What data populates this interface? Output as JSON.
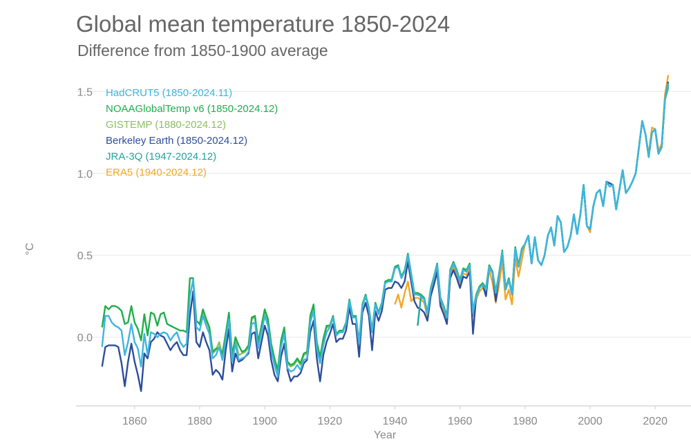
{
  "chart_data": {
    "type": "line",
    "title": "Global mean temperature 1850-2024",
    "subtitle": "Difference from 1850-1900 average",
    "xlabel": "Year",
    "ylabel": "°C",
    "xlim": [
      1842,
      2031
    ],
    "ylim": [
      -0.42,
      1.62
    ],
    "xticks": [
      1860,
      1880,
      1900,
      1920,
      1940,
      1960,
      1980,
      2000,
      2020
    ],
    "yticks": [
      0.0,
      0.5,
      1.0,
      1.5
    ],
    "ytick_labels": [
      "0.0",
      "0.5",
      "1.0",
      "1.5"
    ],
    "grid": "horizontal",
    "legend_position": "top-left",
    "series": [
      {
        "name": "HadCRUT5 (1850-2024.11)",
        "color": "#3db5e0",
        "start_year": 1850,
        "values": [
          -0.06,
          0.13,
          0.13,
          0.09,
          0.07,
          0.06,
          0.04,
          -0.11,
          -0.03,
          0.08,
          -0.03,
          -0.07,
          -0.18,
          0.02,
          -0.11,
          0.03,
          0.02,
          0.0,
          0.02,
          0.03,
          0.02,
          -0.02,
          0.01,
          0.03,
          -0.03,
          -0.06,
          -0.04,
          0.25,
          0.35,
          0.06,
          0.04,
          0.13,
          0.07,
          0.02,
          -0.13,
          -0.11,
          -0.06,
          -0.14,
          -0.02,
          0.11,
          -0.15,
          -0.04,
          -0.14,
          -0.13,
          -0.12,
          -0.09,
          0.08,
          0.09,
          -0.07,
          0.03,
          0.13,
          0.07,
          -0.08,
          -0.17,
          -0.24,
          -0.06,
          0.02,
          -0.19,
          -0.21,
          -0.2,
          -0.17,
          -0.2,
          -0.14,
          -0.13,
          0.09,
          0.16,
          -0.07,
          -0.16,
          -0.05,
          0.03,
          0.06,
          0.12,
          0.01,
          0.03,
          0.03,
          0.08,
          0.22,
          0.12,
          0.12,
          -0.04,
          0.19,
          0.25,
          0.17,
          0.03,
          0.2,
          0.14,
          0.2,
          0.33,
          0.34,
          0.34,
          0.42,
          0.43,
          0.36,
          0.4,
          0.5,
          0.38,
          0.26,
          0.26,
          0.25,
          0.23,
          0.14,
          0.29,
          0.36,
          0.44,
          0.23,
          0.18,
          0.12,
          0.4,
          0.45,
          0.4,
          0.34,
          0.41,
          0.4,
          0.44,
          0.15,
          0.25,
          0.3,
          0.32,
          0.29,
          0.43,
          0.39,
          0.27,
          0.38,
          0.52,
          0.29,
          0.35,
          0.26,
          0.54,
          0.43,
          0.53,
          0.57,
          0.62,
          0.45,
          0.61,
          0.47,
          0.44,
          0.5,
          0.62,
          0.67,
          0.56,
          0.74,
          0.7,
          0.52,
          0.55,
          0.62,
          0.75,
          0.63,
          0.75,
          0.93,
          0.68,
          0.66,
          0.8,
          0.88,
          0.9,
          0.8,
          0.95,
          0.92,
          0.93,
          0.78,
          0.9,
          1.02,
          0.88,
          0.91,
          0.95,
          1.0,
          1.16,
          1.32,
          1.24,
          1.1,
          1.25,
          1.27,
          1.12,
          1.16,
          1.45,
          1.55
        ]
      },
      {
        "name": "NOAAGlobalTemp v6 (1850-2024.12)",
        "color": "#1fae4e",
        "start_year": 1850,
        "values": [
          0.06,
          0.19,
          0.17,
          0.19,
          0.19,
          0.18,
          0.16,
          0.08,
          0.09,
          0.19,
          0.09,
          0.05,
          -0.02,
          0.14,
          0.01,
          0.15,
          0.14,
          0.07,
          0.14,
          0.15,
          0.08,
          0.07,
          0.06,
          0.05,
          0.04,
          0.04,
          0.03,
          0.36,
          0.36,
          0.1,
          0.08,
          0.17,
          0.11,
          0.06,
          -0.09,
          -0.07,
          -0.07,
          -0.1,
          0.02,
          0.15,
          -0.11,
          0.0,
          -0.05,
          -0.09,
          -0.08,
          -0.05,
          0.12,
          0.13,
          -0.03,
          0.07,
          0.17,
          0.11,
          -0.04,
          -0.13,
          -0.2,
          -0.02,
          0.06,
          -0.15,
          -0.17,
          -0.16,
          -0.13,
          -0.16,
          -0.1,
          -0.09,
          0.13,
          0.2,
          -0.03,
          -0.12,
          -0.01,
          0.07,
          0.07,
          0.13,
          0.02,
          0.04,
          0.04,
          0.09,
          0.23,
          0.13,
          0.13,
          -0.03,
          0.2,
          0.26,
          0.18,
          0.04,
          0.21,
          0.15,
          0.21,
          0.34,
          0.35,
          0.35,
          0.43,
          0.44,
          0.37,
          0.41,
          0.51,
          0.39,
          0.27,
          0.27,
          0.26,
          0.24,
          0.15,
          0.3,
          0.37,
          0.45,
          0.24,
          0.19,
          0.13,
          0.41,
          0.46,
          0.41,
          0.35,
          0.42,
          0.41,
          0.45,
          0.16,
          0.26,
          0.31,
          0.33,
          0.3,
          0.44,
          0.4,
          0.28,
          0.39,
          0.53,
          0.3,
          0.36,
          0.27,
          0.55,
          0.44,
          0.54,
          0.57,
          0.62,
          0.45,
          0.61,
          0.47,
          0.44,
          0.5,
          0.62,
          0.67,
          0.56,
          0.74,
          0.7,
          0.52,
          0.55,
          0.62,
          0.75,
          0.63,
          0.75,
          0.93,
          0.68,
          0.66,
          0.8,
          0.88,
          0.9,
          0.8,
          0.95,
          0.92,
          0.93,
          0.78,
          0.9,
          1.02,
          0.88,
          0.91,
          0.95,
          1.0,
          1.16,
          1.32,
          1.24,
          1.1,
          1.25,
          1.27,
          1.12,
          1.16,
          1.45,
          1.53
        ]
      },
      {
        "name": "GISTEMP (1880-2024.12)",
        "color": "#8cbf5f",
        "start_year": 1880,
        "values": [
          0.07,
          0.16,
          0.1,
          0.05,
          -0.1,
          -0.08,
          -0.03,
          -0.11,
          0.01,
          0.14,
          -0.12,
          -0.01,
          -0.11,
          -0.1,
          -0.09,
          -0.06,
          0.11,
          0.12,
          -0.04,
          0.06,
          0.16,
          0.1,
          -0.05,
          -0.14,
          -0.21,
          -0.03,
          0.05,
          -0.16,
          -0.18,
          -0.17,
          -0.14,
          -0.17,
          -0.11,
          -0.1,
          0.12,
          0.19,
          -0.04,
          -0.13,
          -0.02,
          0.06,
          0.06,
          0.12,
          0.01,
          0.03,
          0.03,
          0.08,
          0.22,
          0.12,
          0.12,
          -0.04,
          0.19,
          0.25,
          0.17,
          0.03,
          0.2,
          0.14,
          0.2,
          0.33,
          0.34,
          0.34,
          0.42,
          0.43,
          0.36,
          0.4,
          0.5,
          0.38,
          0.26,
          0.26,
          0.25,
          0.23,
          0.14,
          0.29,
          0.36,
          0.44,
          0.23,
          0.18,
          0.12,
          0.4,
          0.45,
          0.4,
          0.34,
          0.41,
          0.4,
          0.44,
          0.15,
          0.25,
          0.3,
          0.32,
          0.29,
          0.43,
          0.39,
          0.27,
          0.38,
          0.52,
          0.29,
          0.35,
          0.26,
          0.54,
          0.43,
          0.53,
          0.57,
          0.62,
          0.45,
          0.61,
          0.47,
          0.44,
          0.5,
          0.62,
          0.67,
          0.56,
          0.74,
          0.7,
          0.52,
          0.55,
          0.62,
          0.75,
          0.63,
          0.75,
          0.93,
          0.68,
          0.66,
          0.8,
          0.88,
          0.9,
          0.8,
          0.95,
          0.92,
          0.93,
          0.78,
          0.9,
          1.02,
          0.88,
          0.91,
          0.95,
          1.0,
          1.16,
          1.32,
          1.24,
          1.1,
          1.25,
          1.27,
          1.12,
          1.16,
          1.45,
          1.52
        ]
      },
      {
        "name": "Berkeley Earth (1850-2024.12)",
        "color": "#2c4d9c",
        "start_year": 1850,
        "values": [
          -0.18,
          -0.06,
          -0.05,
          -0.05,
          -0.05,
          -0.06,
          -0.16,
          -0.3,
          -0.15,
          -0.04,
          -0.15,
          -0.23,
          -0.33,
          -0.1,
          -0.13,
          -0.03,
          -0.01,
          0.03,
          0.01,
          0.0,
          -0.04,
          -0.08,
          -0.05,
          -0.03,
          -0.08,
          -0.11,
          -0.11,
          0.13,
          0.28,
          -0.03,
          -0.06,
          0.03,
          -0.03,
          -0.08,
          -0.23,
          -0.2,
          -0.22,
          -0.26,
          -0.08,
          0.05,
          -0.21,
          -0.1,
          -0.15,
          -0.14,
          -0.12,
          -0.1,
          0.02,
          0.03,
          -0.13,
          -0.03,
          0.07,
          0.01,
          -0.14,
          -0.23,
          -0.27,
          -0.12,
          -0.04,
          -0.2,
          -0.27,
          -0.24,
          -0.24,
          -0.22,
          -0.16,
          -0.14,
          0.03,
          0.1,
          -0.13,
          -0.27,
          -0.11,
          -0.03,
          0.02,
          0.08,
          -0.03,
          -0.01,
          -0.01,
          0.04,
          0.18,
          0.08,
          0.08,
          -0.12,
          0.15,
          0.21,
          0.13,
          -0.08,
          0.16,
          0.1,
          0.16,
          0.29,
          0.3,
          0.3,
          0.34,
          0.33,
          0.3,
          0.34,
          0.46,
          0.34,
          0.22,
          0.18,
          0.17,
          0.15,
          0.1,
          0.25,
          0.32,
          0.4,
          0.19,
          0.14,
          0.08,
          0.36,
          0.41,
          0.36,
          0.3,
          0.37,
          0.36,
          0.4,
          0.02,
          0.25,
          0.3,
          0.32,
          0.25,
          0.43,
          0.39,
          0.22,
          0.38,
          0.52,
          0.29,
          0.35,
          0.26,
          0.54,
          0.43,
          0.53,
          0.57,
          0.62,
          0.45,
          0.61,
          0.47,
          0.44,
          0.5,
          0.62,
          0.67,
          0.56,
          0.74,
          0.7,
          0.52,
          0.55,
          0.62,
          0.75,
          0.63,
          0.75,
          0.93,
          0.68,
          0.66,
          0.8,
          0.88,
          0.9,
          0.8,
          0.95,
          0.94,
          0.93,
          0.78,
          0.9,
          1.02,
          0.88,
          0.91,
          0.95,
          1.0,
          1.16,
          1.32,
          1.24,
          1.1,
          1.25,
          1.27,
          1.12,
          1.16,
          1.45,
          1.56
        ]
      },
      {
        "name": "JRA-3Q (1947-2024.12)",
        "color": "#22a39f",
        "start_year": 1947,
        "values": [
          0.07,
          0.25,
          0.23,
          0.14,
          0.29,
          0.36,
          0.44,
          0.23,
          0.18,
          0.12,
          0.4,
          0.45,
          0.4,
          0.34,
          0.41,
          0.4,
          0.44,
          0.15,
          0.25,
          0.3,
          0.32,
          0.29,
          0.43,
          0.39,
          0.27,
          0.38,
          0.52,
          0.29,
          0.35,
          0.26,
          0.54,
          0.43,
          0.53,
          0.57,
          0.62,
          0.45,
          0.61,
          0.47,
          0.44,
          0.5,
          0.62,
          0.67,
          0.56,
          0.74,
          0.7,
          0.52,
          0.55,
          0.62,
          0.75,
          0.63,
          0.75,
          0.93,
          0.68,
          0.66,
          0.8,
          0.88,
          0.9,
          0.8,
          0.95,
          0.92,
          0.93,
          0.78,
          0.9,
          1.02,
          0.88,
          0.91,
          0.95,
          1.0,
          1.16,
          1.32,
          1.24,
          1.1,
          1.25,
          1.27,
          1.12,
          1.16,
          1.45,
          1.54
        ]
      },
      {
        "name": "ERA5 (1940-2024.12)",
        "color": "#f5a623",
        "start_year": 1940,
        "values": [
          0.2,
          0.26,
          0.18,
          0.27,
          0.34,
          0.22,
          0.24,
          0.24,
          0.23,
          0.21,
          0.12,
          0.27,
          0.34,
          0.42,
          0.21,
          0.16,
          0.1,
          0.38,
          0.43,
          0.38,
          0.32,
          0.39,
          0.38,
          0.42,
          0.13,
          0.23,
          0.28,
          0.3,
          0.27,
          0.41,
          0.33,
          0.21,
          0.32,
          0.46,
          0.23,
          0.29,
          0.2,
          0.48,
          0.37,
          0.47,
          0.57,
          0.62,
          0.45,
          0.61,
          0.47,
          0.44,
          0.5,
          0.62,
          0.67,
          0.56,
          0.74,
          0.7,
          0.52,
          0.55,
          0.62,
          0.75,
          0.63,
          0.75,
          0.93,
          0.68,
          0.64,
          0.8,
          0.88,
          0.9,
          0.8,
          0.95,
          0.92,
          0.93,
          0.78,
          0.9,
          1.02,
          0.88,
          0.91,
          0.95,
          1.0,
          1.16,
          1.32,
          1.24,
          1.12,
          1.28,
          1.27,
          1.14,
          1.18,
          1.48,
          1.6
        ]
      }
    ],
    "draw_order": [
      5,
      3,
      2,
      1,
      4,
      0
    ]
  }
}
